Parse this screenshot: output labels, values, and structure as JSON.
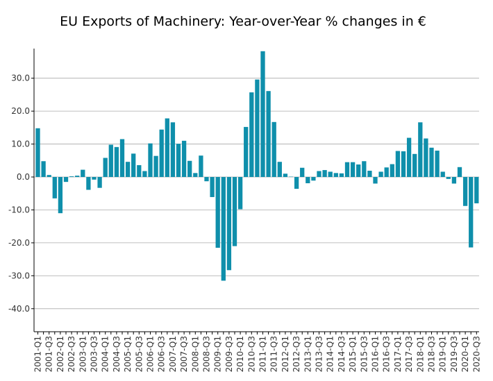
{
  "chart_data": {
    "type": "bar",
    "title": "EU Exports of Machinery: Year-over-Year % changes in €",
    "xlabel": "",
    "ylabel": "",
    "ylim": [
      -47,
      39
    ],
    "yticks": [
      -40.0,
      -30.0,
      -20.0,
      -10.0,
      0.0,
      10.0,
      20.0,
      30.0
    ],
    "ytick_labels": [
      "-40.0",
      "-30.0",
      "-20.0",
      "-10.0",
      "0.0",
      "10.0",
      "20.0",
      "30.0"
    ],
    "grid": true,
    "bar_color": "#0f8fab",
    "grid_color": "#aaaaaa",
    "categories": [
      "2001-Q1",
      "2001-Q2",
      "2001-Q3",
      "2001-Q4",
      "2002-Q1",
      "2002-Q2",
      "2002-Q3",
      "2002-Q4",
      "2003-Q1",
      "2003-Q2",
      "2003-Q3",
      "2003-Q4",
      "2004-Q1",
      "2004-Q2",
      "2004-Q3",
      "2004-Q4",
      "2005-Q1",
      "2005-Q2",
      "2005-Q3",
      "2005-Q4",
      "2006-Q1",
      "2006-Q2",
      "2006-Q3",
      "2006-Q4",
      "2007-Q1",
      "2007-Q2",
      "2007-Q3",
      "2007-Q4",
      "2008-Q1",
      "2008-Q2",
      "2008-Q3",
      "2008-Q4",
      "2009-Q1",
      "2009-Q2",
      "2009-Q3",
      "2009-Q4",
      "2010-Q1",
      "2010-Q2",
      "2010-Q3",
      "2010-Q4",
      "2011-Q1",
      "2011-Q2",
      "2011-Q3",
      "2011-Q4",
      "2012-Q1",
      "2012-Q2",
      "2012-Q3",
      "2012-Q4",
      "2013-Q1",
      "2013-Q2",
      "2013-Q3",
      "2013-Q4",
      "2014-Q1",
      "2014-Q2",
      "2014-Q3",
      "2014-Q4",
      "2015-Q1",
      "2015-Q2",
      "2015-Q3",
      "2015-Q4",
      "2016-Q1",
      "2016-Q2",
      "2016-Q3",
      "2016-Q4",
      "2017-Q1",
      "2017-Q2",
      "2017-Q3",
      "2017-Q4",
      "2018-Q1",
      "2018-Q2",
      "2018-Q3",
      "2018-Q4",
      "2019-Q1",
      "2019-Q2",
      "2019-Q3",
      "2019-Q4",
      "2020-Q1",
      "2020-Q2",
      "2020-Q3"
    ],
    "values": [
      14.8,
      4.8,
      0.6,
      -6.5,
      -11.0,
      -1.5,
      0.2,
      0.4,
      2.2,
      -3.9,
      -0.8,
      -3.3,
      5.8,
      9.8,
      9.1,
      11.5,
      4.6,
      7.1,
      3.6,
      1.8,
      10.2,
      6.4,
      14.4,
      17.8,
      16.6,
      10.1,
      11.0,
      4.9,
      1.2,
      6.5,
      -1.3,
      -6.1,
      -21.5,
      -31.5,
      -28.3,
      -21.0,
      -9.8,
      15.2,
      25.7,
      29.6,
      38.2,
      26.1,
      16.7,
      4.6,
      1.0,
      0.1,
      -3.6,
      2.8,
      -1.9,
      -1.1,
      1.8,
      2.1,
      1.6,
      1.2,
      1.1,
      4.5,
      4.5,
      3.8,
      4.8,
      1.9,
      -2.0,
      1.6,
      2.9,
      3.9,
      7.9,
      7.8,
      11.9,
      7.0,
      16.6,
      11.7,
      8.9,
      8.0,
      1.6,
      -0.6,
      -2.0,
      3.0,
      -8.8,
      -21.4,
      -8.0
    ]
  }
}
